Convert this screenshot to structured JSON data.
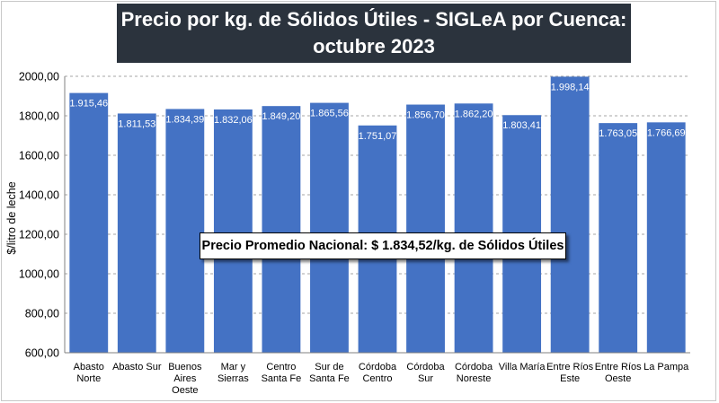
{
  "title": {
    "line1": "Precio por kg. de Sólidos Útiles - SIGLeA por Cuenca:",
    "line2": "octubre 2023"
  },
  "callout": "Precio Promedio Nacional: $ 1.834,52/kg. de Sólidos Útiles",
  "chart_data": {
    "type": "bar",
    "categories": [
      [
        "Abasto",
        "Norte"
      ],
      [
        "Abasto Sur"
      ],
      [
        "Buenos",
        "Aires",
        "Oeste"
      ],
      [
        "Mar y",
        "Sierras"
      ],
      [
        "Centro",
        "Santa Fe"
      ],
      [
        "Sur de",
        "Santa Fe"
      ],
      [
        "Córdoba",
        "Centro"
      ],
      [
        "Córdoba",
        "Sur"
      ],
      [
        "Córdoba",
        "Noreste"
      ],
      [
        "Villa María"
      ],
      [
        "Entre Ríos",
        "Este"
      ],
      [
        "Entre Ríos",
        "Oeste"
      ],
      [
        "La Pampa"
      ]
    ],
    "values": [
      1915.46,
      1811.53,
      1834.39,
      1832.06,
      1849.2,
      1865.56,
      1751.07,
      1856.7,
      1862.2,
      1803.41,
      1998.14,
      1763.05,
      1766.69
    ],
    "value_labels": [
      "1.915,46",
      "1.811,53",
      "1.834,39",
      "1.832,06",
      "1.849,20",
      "1.865,56",
      "1.751,07",
      "1.856,70",
      "1.862,20",
      "1.803,41",
      "1.998,14",
      "1.763,05",
      "1.766,69"
    ],
    "ylabel": "$/litro de leche",
    "ylim": [
      600,
      2000
    ],
    "yticks": [
      600,
      800,
      1000,
      1200,
      1400,
      1600,
      1800,
      2000
    ],
    "ytick_labels": [
      "600,00",
      "800,00",
      "1000,00",
      "1200,00",
      "1400,00",
      "1600,00",
      "1800,00",
      "2000,00"
    ],
    "grid": true,
    "colors": {
      "bar": "#4472c4",
      "plot_bg": "#ffffff",
      "grid": "#a6a6a6"
    }
  }
}
